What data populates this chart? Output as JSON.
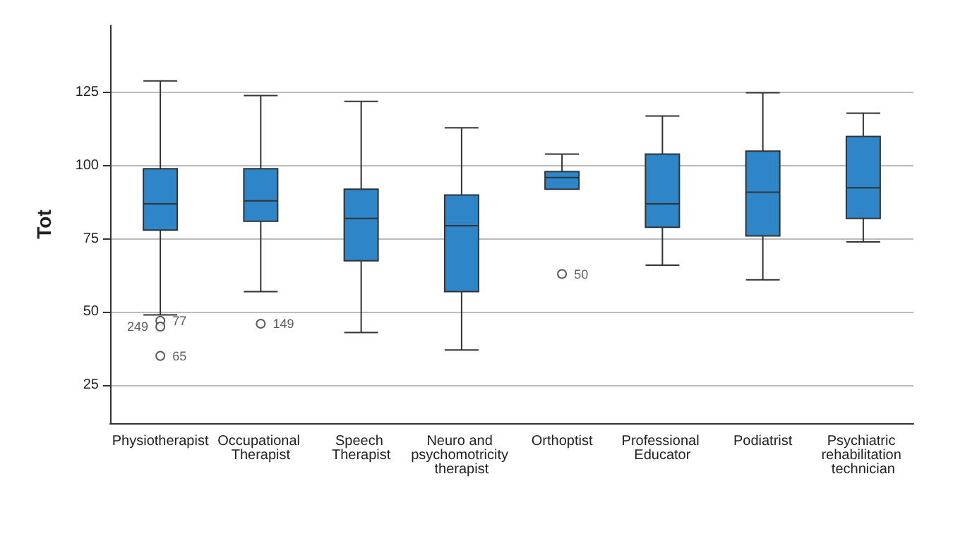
{
  "chart_data": {
    "type": "box",
    "ylabel": "Tot",
    "color": "#2e86c8",
    "categories": [
      "Physiotherapist",
      "Occupational Therapist",
      "Speech Therapist",
      "Neuro and psychomotricity therapist",
      "Orthoptist",
      "Professional Educator",
      "Podiatrist",
      "Psychiatric rehabilitation technician"
    ],
    "boxes": [
      {
        "low": 49,
        "q1": 78,
        "median": 87,
        "q3": 99,
        "high": 129,
        "outliers": [
          47,
          45,
          35
        ]
      },
      {
        "low": 57,
        "q1": 81,
        "median": 88,
        "q3": 99,
        "high": 124,
        "outliers": [
          46
        ]
      },
      {
        "low": 43,
        "q1": 67.5,
        "median": 82,
        "q3": 92,
        "high": 122
      },
      {
        "low": 37,
        "q1": 57,
        "median": 79.5,
        "q3": 90,
        "high": 113
      },
      {
        "low": 92,
        "q1": 92,
        "median": 96,
        "q3": 98,
        "high": 104,
        "outliers": [
          63
        ]
      },
      {
        "low": 66,
        "q1": 79,
        "median": 87,
        "q3": 104,
        "high": 117
      },
      {
        "low": 61,
        "q1": 76,
        "median": 91,
        "q3": 105,
        "high": 125
      },
      {
        "low": 74,
        "q1": 82,
        "median": 92.5,
        "q3": 110,
        "high": 118
      }
    ],
    "annotations": [
      "77",
      "249",
      "65",
      "149",
      "50"
    ],
    "ylim": [
      12,
      148
    ],
    "yticks": [
      25,
      50,
      75,
      100,
      125
    ],
    "grid": "y"
  }
}
